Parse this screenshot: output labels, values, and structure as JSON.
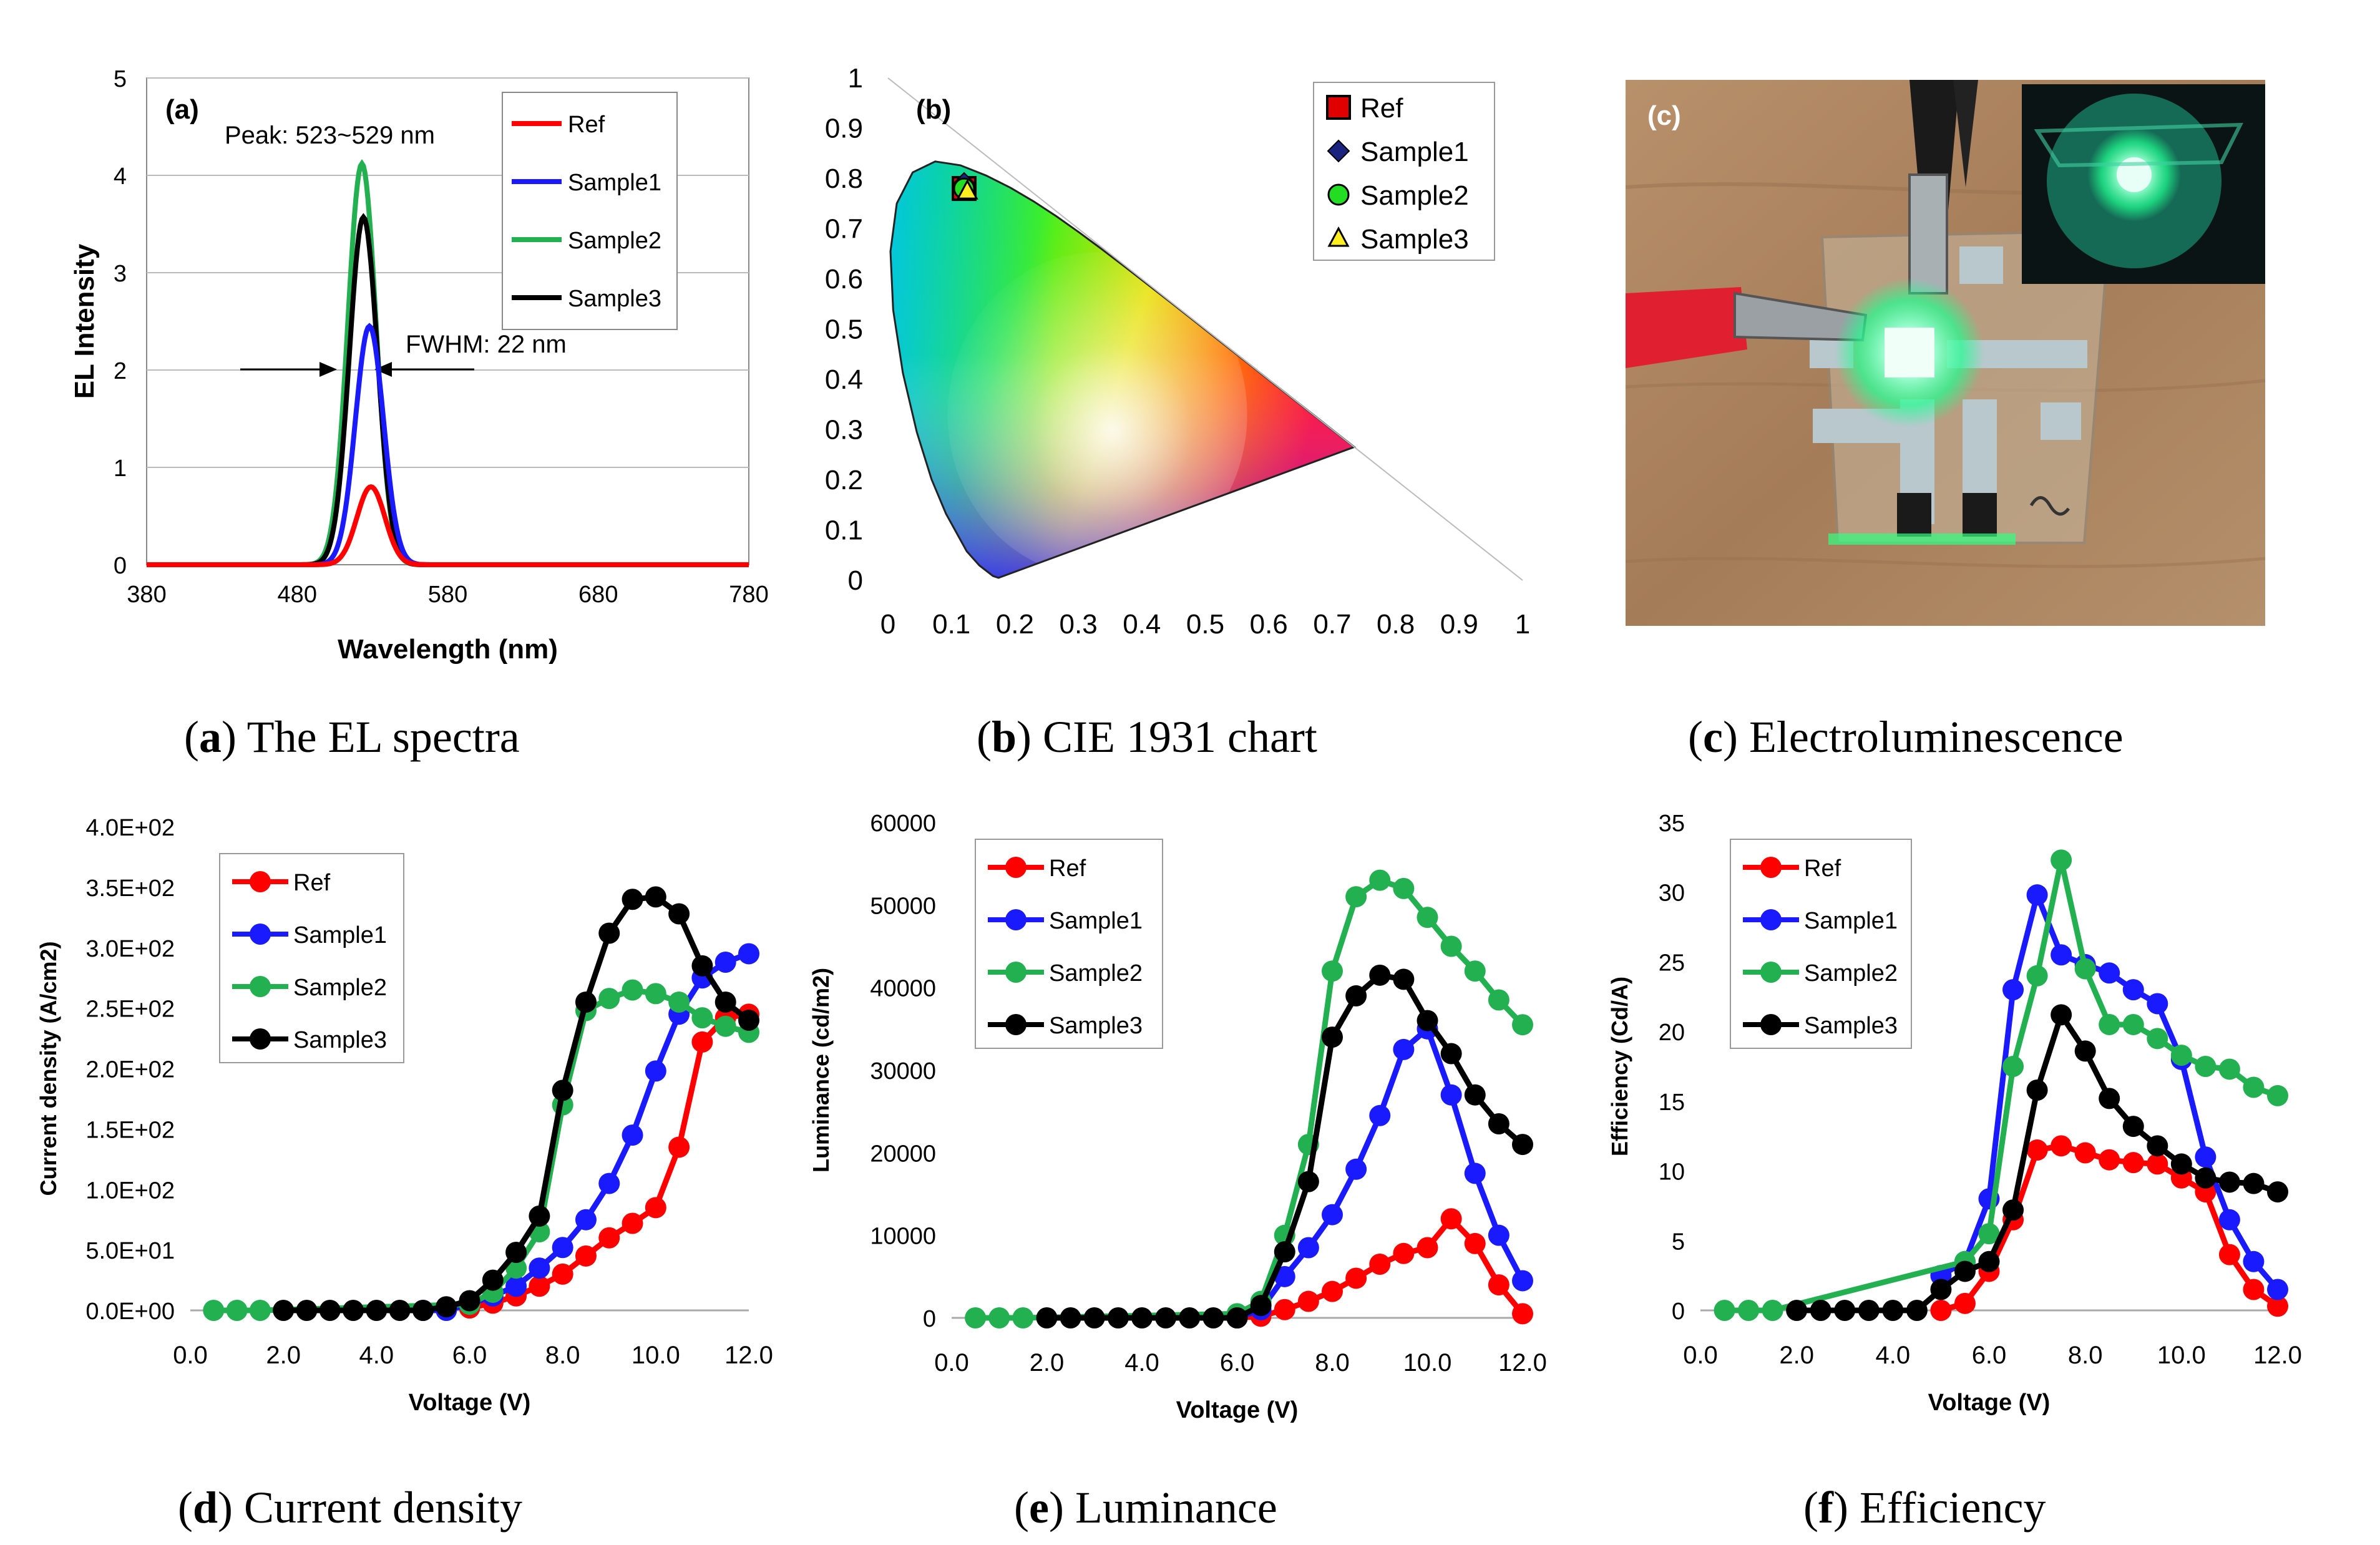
{
  "figure": {
    "captions": {
      "a": {
        "letter": "a",
        "text": " The EL spectra"
      },
      "b": {
        "letter": "b",
        "text": " CIE 1931 chart"
      },
      "c": {
        "letter": "c",
        "text": " Electroluminescence"
      },
      "d": {
        "letter": "d",
        "text": " Current density"
      },
      "e": {
        "letter": "e",
        "text": " Luminance"
      },
      "f": {
        "letter": "f",
        "text": " Efficiency"
      }
    },
    "panel_c_label": "(c)",
    "panel_c_description": "photo"
  },
  "colors": {
    "Ref": "#ff0000",
    "Sample1": "#1a1aff",
    "Sample2": "#22b050",
    "Sample3": "#000000"
  },
  "chart_data": [
    {
      "id": "a",
      "type": "line",
      "panel_label": "(a)",
      "title": "",
      "xlabel": "Wavelength (nm)",
      "ylabel": "EL Intensity",
      "xlim": [
        380,
        780
      ],
      "ylim": [
        0,
        5
      ],
      "xticks": [
        "380",
        "480",
        "580",
        "680",
        "780"
      ],
      "yticks": [
        "0",
        "1",
        "2",
        "3",
        "4",
        "5"
      ],
      "legend": [
        "Ref",
        "Sample1",
        "Sample2",
        "Sample3"
      ],
      "legend_position": "top-right",
      "annotations": {
        "peak": "Peak: 523~529 nm",
        "fwhm": "FWHM: 22 nm"
      },
      "series": [
        {
          "name": "Ref",
          "peak_nm": 529,
          "peak": 0.8,
          "fwhm_nm": 22
        },
        {
          "name": "Sample1",
          "peak_nm": 528,
          "peak": 2.45,
          "fwhm_nm": 22
        },
        {
          "name": "Sample2",
          "peak_nm": 523,
          "peak": 4.12,
          "fwhm_nm": 22
        },
        {
          "name": "Sample3",
          "peak_nm": 524,
          "peak": 3.57,
          "fwhm_nm": 22
        }
      ]
    },
    {
      "id": "b",
      "type": "scatter",
      "panel_label": "(b)",
      "title": "CIE 1931 chart",
      "xlim": [
        0,
        1
      ],
      "ylim": [
        0,
        1
      ],
      "xticks": [
        "0",
        "0.1",
        "0.2",
        "0.3",
        "0.4",
        "0.5",
        "0.6",
        "0.7",
        "0.8",
        "0.9",
        "1"
      ],
      "yticks": [
        "0",
        "0.1",
        "0.2",
        "0.3",
        "0.4",
        "0.5",
        "0.6",
        "0.7",
        "0.8",
        "0.9",
        "1"
      ],
      "legend": [
        "Ref",
        "Sample1",
        "Sample2",
        "Sample3"
      ],
      "legend_position": "top-right",
      "points": [
        {
          "name": "Ref",
          "x": 0.12,
          "y": 0.78,
          "marker": "square",
          "color": "#e00000"
        },
        {
          "name": "Sample1",
          "x": 0.12,
          "y": 0.79,
          "marker": "diamond",
          "color": "#1a237e"
        },
        {
          "name": "Sample2",
          "x": 0.12,
          "y": 0.78,
          "marker": "circle",
          "color": "#22dd22"
        },
        {
          "name": "Sample3",
          "x": 0.125,
          "y": 0.775,
          "marker": "triangle",
          "color": "#ffee22"
        }
      ]
    },
    {
      "id": "d",
      "type": "line",
      "title": "",
      "xlabel": "Voltage (V)",
      "ylabel": "Current density (A/cm2)",
      "xlim": [
        0,
        12
      ],
      "ylim": [
        0,
        400
      ],
      "xticks": [
        "0.0",
        "2.0",
        "4.0",
        "6.0",
        "8.0",
        "10.0",
        "12.0"
      ],
      "yticks": [
        "0.0E+00",
        "5.0E+01",
        "1.0E+02",
        "1.5E+02",
        "2.0E+02",
        "2.5E+02",
        "3.0E+02",
        "3.5E+02",
        "4.0E+02"
      ],
      "legend": [
        "Ref",
        "Sample1",
        "Sample2",
        "Sample3"
      ],
      "legend_position": "top-left",
      "series": [
        {
          "name": "Ref",
          "x": [
            6.0,
            6.5,
            7.0,
            7.5,
            8.0,
            8.5,
            9.0,
            9.5,
            10.0,
            10.5,
            11.0,
            11.5,
            12.0
          ],
          "values": [
            2,
            6,
            12,
            20,
            30,
            45,
            60,
            72,
            85,
            135,
            222,
            242,
            245
          ]
        },
        {
          "name": "Sample1",
          "x": [
            5.0,
            5.5,
            6.0,
            6.5,
            7.0,
            7.5,
            8.0,
            8.5,
            9.0,
            9.5,
            10.0,
            10.5,
            11.0,
            11.5,
            12.0
          ],
          "values": [
            0,
            0,
            5,
            12,
            20,
            35,
            52,
            75,
            105,
            145,
            198,
            245,
            275,
            288,
            295
          ]
        },
        {
          "name": "Sample2",
          "x": [
            0.5,
            1.0,
            1.5,
            6.0,
            6.5,
            7.0,
            7.5,
            8.0,
            8.5,
            9.0,
            9.5,
            10.0,
            10.5,
            11.0,
            11.5,
            12.0
          ],
          "values": [
            0,
            0,
            0,
            5,
            15,
            35,
            65,
            170,
            248,
            258,
            265,
            262,
            255,
            242,
            235,
            230
          ]
        },
        {
          "name": "Sample3",
          "x": [
            2.0,
            2.5,
            3.0,
            3.5,
            4.0,
            4.5,
            5.0,
            5.5,
            6.0,
            6.5,
            7.0,
            7.5,
            8.0,
            8.5,
            9.0,
            9.5,
            10.0,
            10.5,
            11.0,
            11.5,
            12.0
          ],
          "values": [
            0,
            0,
            0,
            0,
            0,
            0,
            0,
            3,
            8,
            25,
            48,
            78,
            182,
            255,
            312,
            340,
            342,
            328,
            285,
            255,
            240
          ]
        }
      ]
    },
    {
      "id": "e",
      "type": "line",
      "title": "",
      "xlabel": "Voltage (V)",
      "ylabel": "Luminance (cd/m2)",
      "xlim": [
        0,
        12
      ],
      "ylim": [
        0,
        60000
      ],
      "xticks": [
        "0.0",
        "2.0",
        "4.0",
        "6.0",
        "8.0",
        "10.0",
        "12.0"
      ],
      "yticks": [
        "0",
        "10000",
        "20000",
        "30000",
        "40000",
        "50000",
        "60000"
      ],
      "legend": [
        "Ref",
        "Sample1",
        "Sample2",
        "Sample3"
      ],
      "legend_position": "top-left",
      "series": [
        {
          "name": "Ref",
          "x": [
            6.0,
            6.5,
            7.0,
            7.5,
            8.0,
            8.5,
            9.0,
            9.5,
            10.0,
            10.5,
            11.0,
            11.5,
            12.0
          ],
          "values": [
            0,
            200,
            1000,
            2000,
            3200,
            4800,
            6500,
            7800,
            8500,
            12000,
            9000,
            4000,
            500
          ]
        },
        {
          "name": "Sample1",
          "x": [
            6.0,
            6.5,
            7.0,
            7.5,
            8.0,
            8.5,
            9.0,
            9.5,
            10.0,
            10.5,
            11.0,
            11.5,
            12.0
          ],
          "values": [
            0,
            1000,
            5000,
            8500,
            12500,
            18000,
            24500,
            32500,
            35000,
            27000,
            17500,
            10000,
            4500
          ]
        },
        {
          "name": "Sample2",
          "x": [
            0.5,
            1.0,
            1.5,
            6.0,
            6.5,
            7.0,
            7.5,
            8.0,
            8.5,
            9.0,
            9.5,
            10.0,
            10.5,
            11.0,
            11.5,
            12.0
          ],
          "values": [
            0,
            0,
            0,
            500,
            2000,
            10000,
            21000,
            42000,
            51000,
            53000,
            52000,
            48500,
            45000,
            42000,
            38500,
            35500
          ]
        },
        {
          "name": "Sample3",
          "x": [
            2.0,
            2.5,
            3.0,
            3.5,
            4.0,
            4.5,
            5.0,
            5.5,
            6.0,
            6.5,
            7.0,
            7.5,
            8.0,
            8.5,
            9.0,
            9.5,
            10.0,
            10.5,
            11.0,
            11.5,
            12.0
          ],
          "values": [
            0,
            0,
            0,
            0,
            0,
            0,
            0,
            0,
            0,
            1500,
            8000,
            16500,
            34000,
            39000,
            41500,
            41000,
            36000,
            32000,
            27000,
            23500,
            21000
          ]
        }
      ]
    },
    {
      "id": "f",
      "type": "line",
      "title": "",
      "xlabel": "Voltage (V)",
      "ylabel": "Efficiency (Cd/A)",
      "xlim": [
        0,
        12
      ],
      "ylim": [
        0,
        35
      ],
      "xticks": [
        "0.0",
        "2.0",
        "4.0",
        "6.0",
        "8.0",
        "10.0",
        "12.0"
      ],
      "yticks": [
        "0",
        "5",
        "10",
        "15",
        "20",
        "25",
        "30",
        "35"
      ],
      "legend": [
        "Ref",
        "Sample1",
        "Sample2",
        "Sample3"
      ],
      "legend_position": "top-left",
      "series": [
        {
          "name": "Ref",
          "x": [
            5.0,
            5.5,
            6.0,
            6.5,
            7.0,
            7.5,
            8.0,
            8.5,
            9.0,
            9.5,
            10.0,
            10.5,
            11.0,
            11.5,
            12.0
          ],
          "values": [
            0,
            0.5,
            2.8,
            6.5,
            11.5,
            11.8,
            11.3,
            10.8,
            10.6,
            10.5,
            9.5,
            8.5,
            4.0,
            1.5,
            0.3
          ]
        },
        {
          "name": "Sample1",
          "x": [
            5.0,
            5.5,
            6.0,
            6.5,
            7.0,
            7.5,
            8.0,
            8.5,
            9.0,
            9.5,
            10.0,
            10.5,
            11.0,
            11.5,
            12.0
          ],
          "values": [
            2.5,
            3.5,
            8.0,
            23.0,
            29.8,
            25.5,
            24.8,
            24.2,
            23.0,
            22.0,
            18.0,
            11.0,
            6.5,
            3.5,
            1.5
          ]
        },
        {
          "name": "Sample2",
          "x": [
            0.5,
            1.0,
            1.5,
            5.5,
            6.0,
            6.5,
            7.0,
            7.5,
            8.0,
            8.5,
            9.0,
            9.5,
            10.0,
            10.5,
            11.0,
            11.5,
            12.0
          ],
          "values": [
            0,
            0,
            0,
            3.5,
            5.5,
            17.5,
            24.0,
            32.3,
            24.5,
            20.5,
            20.5,
            19.5,
            18.3,
            17.5,
            17.3,
            16.0,
            15.4
          ]
        },
        {
          "name": "Sample3",
          "x": [
            2.0,
            2.5,
            3.0,
            3.5,
            4.0,
            4.5,
            5.0,
            5.5,
            6.0,
            6.5,
            7.0,
            7.5,
            8.0,
            8.5,
            9.0,
            9.5,
            10.0,
            10.5,
            11.0,
            11.5,
            12.0
          ],
          "values": [
            0,
            0,
            0,
            0,
            0,
            0,
            1.5,
            2.8,
            3.5,
            7.2,
            15.8,
            21.2,
            18.6,
            15.2,
            13.2,
            11.8,
            10.5,
            9.5,
            9.2,
            9.1,
            8.5
          ]
        }
      ]
    }
  ]
}
